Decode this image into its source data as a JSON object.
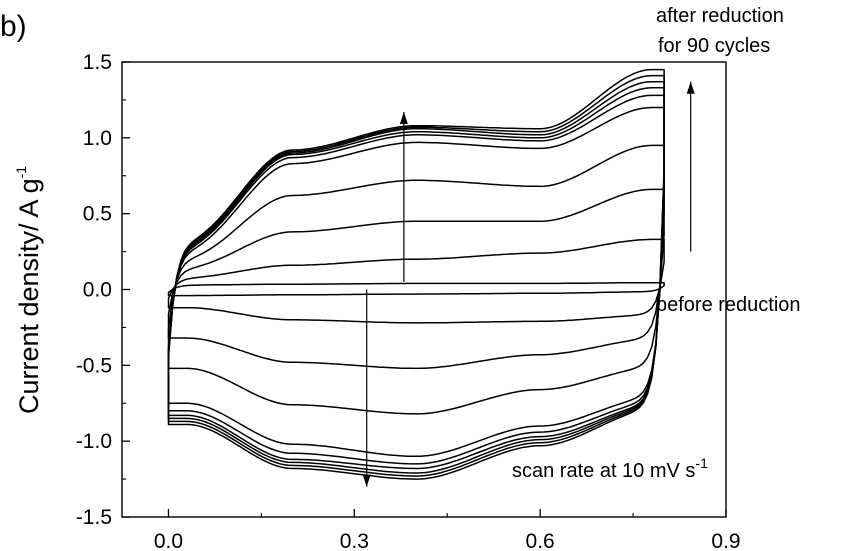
{
  "panel_label": "b)",
  "chart_data": {
    "type": "line",
    "title": "",
    "xlabel": "",
    "ylabel": {
      "text": "Current density/ A g",
      "superscript": "-1"
    },
    "xlim": [
      -0.075,
      0.9
    ],
    "ylim": [
      -1.5,
      1.5
    ],
    "x_ticks": [
      "0.0",
      "0.3",
      "0.6",
      "0.9"
    ],
    "x_tick_values": [
      0.0,
      0.3,
      0.6,
      0.9
    ],
    "y_ticks": [
      "1.5",
      "1.0",
      "0.5",
      "0.0",
      "-0.5",
      "-1.0",
      "-1.5"
    ],
    "y_tick_values": [
      1.5,
      1.0,
      0.5,
      0.0,
      -0.5,
      -1.0,
      -1.5
    ],
    "grid": false,
    "legend": "none",
    "potential_window": [
      0.0,
      0.8
    ],
    "series": [
      {
        "upper": [
          0.03,
          0.035,
          0.04,
          0.04,
          0.045
        ],
        "lower": [
          -0.04,
          -0.035,
          -0.03,
          -0.025,
          -0.015
        ]
      },
      {
        "upper": [
          0.08,
          0.16,
          0.2,
          0.24,
          0.33
        ],
        "lower": [
          -0.12,
          -0.2,
          -0.22,
          -0.21,
          -0.17
        ]
      },
      {
        "upper": [
          0.15,
          0.38,
          0.45,
          0.45,
          0.66
        ],
        "lower": [
          -0.32,
          -0.48,
          -0.52,
          -0.43,
          -0.33
        ]
      },
      {
        "upper": [
          0.22,
          0.62,
          0.72,
          0.68,
          0.95
        ],
        "lower": [
          -0.52,
          -0.76,
          -0.82,
          -0.66,
          -0.52
        ]
      },
      {
        "upper": [
          0.28,
          0.83,
          0.97,
          0.93,
          1.2
        ],
        "lower": [
          -0.75,
          -1.02,
          -1.1,
          -0.9,
          -0.72
        ]
      },
      {
        "upper": [
          0.3,
          0.87,
          1.02,
          0.98,
          1.28
        ],
        "lower": [
          -0.8,
          -1.08,
          -1.15,
          -0.94,
          -0.75
        ]
      },
      {
        "upper": [
          0.31,
          0.89,
          1.04,
          1.0,
          1.33
        ],
        "lower": [
          -0.83,
          -1.12,
          -1.18,
          -0.97,
          -0.77
        ]
      },
      {
        "upper": [
          0.32,
          0.9,
          1.06,
          1.02,
          1.37
        ],
        "lower": [
          -0.85,
          -1.14,
          -1.21,
          -0.99,
          -0.78
        ]
      },
      {
        "upper": [
          0.33,
          0.91,
          1.07,
          1.04,
          1.41
        ],
        "lower": [
          -0.87,
          -1.16,
          -1.23,
          -1.01,
          -0.79
        ]
      },
      {
        "upper": [
          0.34,
          0.92,
          1.08,
          1.06,
          1.45
        ],
        "lower": [
          -0.89,
          -1.18,
          -1.25,
          -1.03,
          -0.8
        ]
      }
    ],
    "annotations": {
      "top_right_line1": "after reduction",
      "top_right_line2": "for 90 cycles",
      "before": "before reduction",
      "scan_rate": {
        "text": "scan rate at 10 mV s",
        "superscript": "-1"
      }
    },
    "arrows": [
      {
        "x": 0.38,
        "y_from": 0.05,
        "y_to": 1.17
      },
      {
        "x": 0.32,
        "y_from": 0.0,
        "y_to": -1.3
      },
      {
        "x": 0.843,
        "y_from": 0.25,
        "y_to": 1.37
      }
    ]
  }
}
